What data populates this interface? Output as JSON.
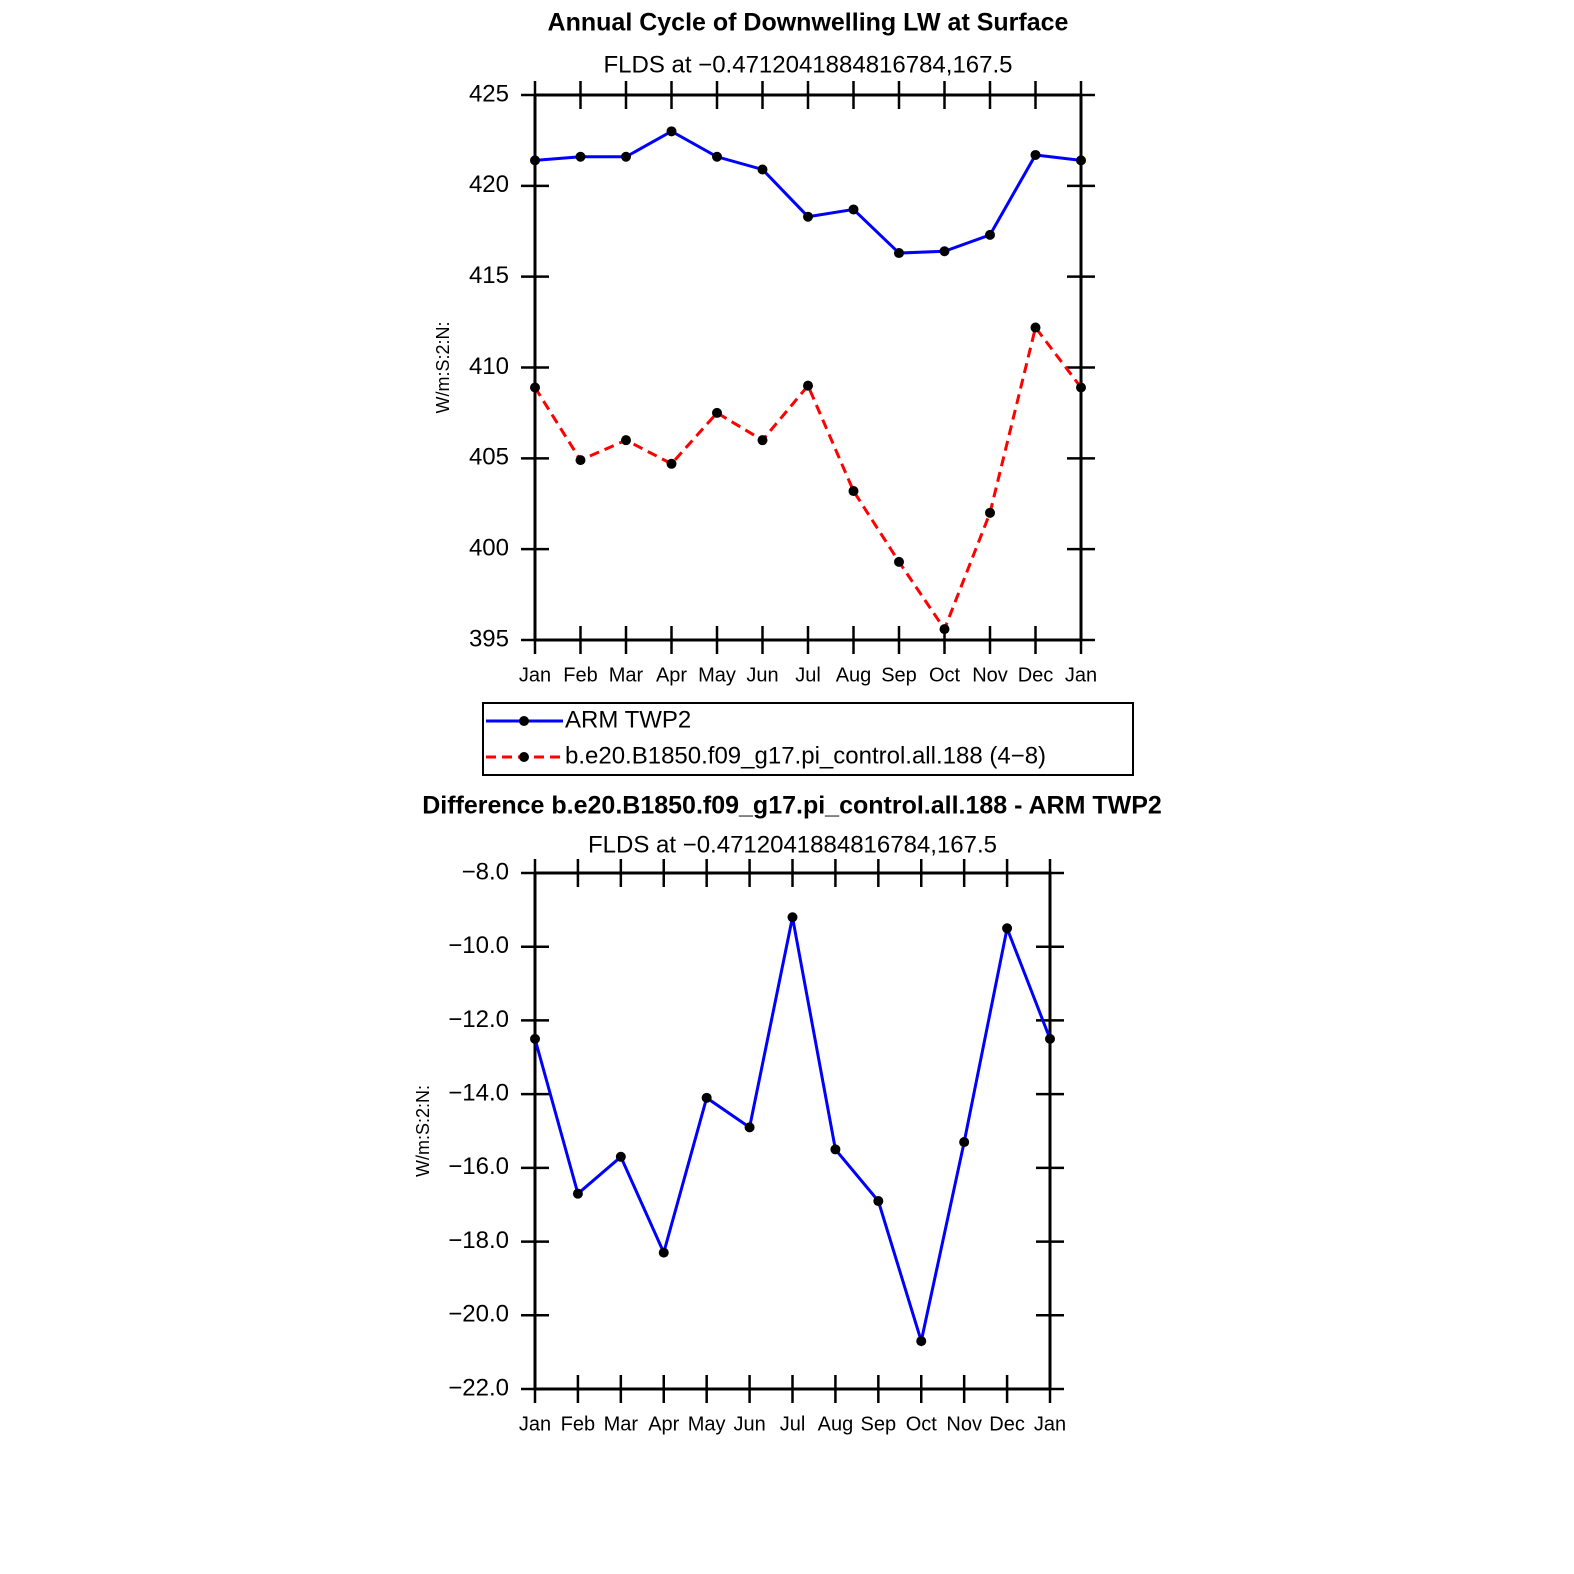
{
  "chart_data": [
    {
      "type": "line",
      "title": "Annual Cycle of Downwelling LW at Surface",
      "subtitle": "FLDS at −0.4712041884816784,167.5",
      "y_label": "W/m:S:2:N:",
      "categories": [
        "Jan",
        "Feb",
        "Mar",
        "Apr",
        "May",
        "Jun",
        "Jul",
        "Aug",
        "Sep",
        "Oct",
        "Nov",
        "Dec",
        "Jan"
      ],
      "series": [
        {
          "name": "ARM TWP2",
          "color": "#0000ff",
          "dash": false,
          "values": [
            421.4,
            421.6,
            421.6,
            423.0,
            421.6,
            420.9,
            418.3,
            418.7,
            416.3,
            416.4,
            417.3,
            421.7,
            421.4
          ]
        },
        {
          "name": "b.e20.B1850.f09_g17.pi_control.all.188 (4−8)",
          "color": "#ff0000",
          "dash": true,
          "values": [
            408.9,
            404.9,
            406.0,
            404.7,
            407.5,
            406.0,
            409.0,
            403.2,
            399.3,
            395.6,
            402.0,
            412.2,
            408.9
          ]
        }
      ],
      "ylim": [
        395,
        425
      ],
      "yticks": [
        395,
        400,
        405,
        410,
        415,
        420,
        425
      ],
      "legend": "bottom"
    },
    {
      "type": "line",
      "title": "Difference b.e20.B1850.f09_g17.pi_control.all.188 - ARM TWP2",
      "subtitle": "FLDS at −0.4712041884816784,167.5",
      "y_label": "W/m:S:2:N:",
      "categories": [
        "Jan",
        "Feb",
        "Mar",
        "Apr",
        "May",
        "Jun",
        "Jul",
        "Aug",
        "Sep",
        "Oct",
        "Nov",
        "Dec",
        "Jan"
      ],
      "color": "#0000ff",
      "values": [
        -12.5,
        -16.7,
        -15.7,
        -18.3,
        -14.1,
        -14.9,
        -9.2,
        -15.5,
        -16.9,
        -20.7,
        -15.3,
        -9.5,
        -12.5
      ],
      "ylim": [
        -22,
        -8
      ],
      "yticks": [
        {
          "value": -22,
          "label": "−22.0"
        },
        {
          "value": -20,
          "label": "−20.0"
        },
        {
          "value": -18,
          "label": "−18.0"
        },
        {
          "value": -16,
          "label": "−16.0"
        },
        {
          "value": -14,
          "label": "−14.0"
        },
        {
          "value": -12,
          "label": "−12.0"
        },
        {
          "value": -10,
          "label": "−10.0"
        },
        {
          "value": -8,
          "label": "−8.0"
        }
      ]
    }
  ]
}
